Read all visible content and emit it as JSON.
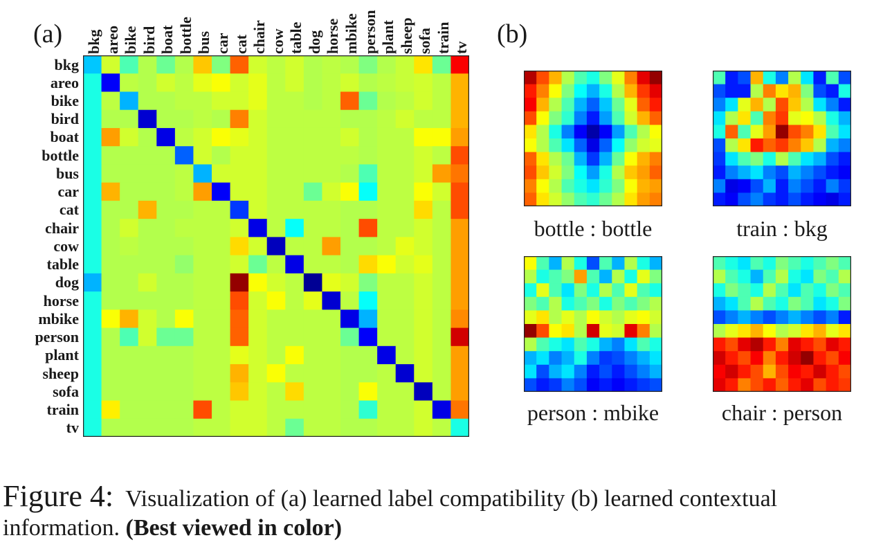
{
  "panel_a": {
    "letter": "(a)",
    "labels": [
      "bkg",
      "areo",
      "bike",
      "bird",
      "boat",
      "bottle",
      "bus",
      "car",
      "cat",
      "chair",
      "cow",
      "table",
      "dog",
      "horse",
      "mbike",
      "person",
      "plant",
      "sheep",
      "sofa",
      "train",
      "tv"
    ],
    "chart_data": {
      "type": "heatmap",
      "rows": [
        "bkg",
        "areo",
        "bike",
        "bird",
        "boat",
        "bottle",
        "bus",
        "car",
        "cat",
        "chair",
        "cow",
        "table",
        "dog",
        "horse",
        "mbike",
        "person",
        "plant",
        "sheep",
        "sofa",
        "train",
        "tv"
      ],
      "columns": [
        "bkg",
        "areo",
        "bike",
        "bird",
        "boat",
        "bottle",
        "bus",
        "car",
        "cat",
        "chair",
        "cow",
        "table",
        "dog",
        "horse",
        "mbike",
        "person",
        "plant",
        "sheep",
        "sofa",
        "train",
        "tv"
      ],
      "colormap": "jet",
      "values": [
        [
          0.32,
          0.58,
          0.45,
          0.55,
          0.48,
          0.55,
          0.68,
          0.5,
          0.78,
          0.58,
          0.56,
          0.58,
          0.55,
          0.56,
          0.55,
          0.5,
          0.55,
          0.57,
          0.65,
          0.48,
          0.88
        ],
        [
          0.4,
          0.12,
          0.56,
          0.55,
          0.58,
          0.56,
          0.6,
          0.62,
          0.58,
          0.6,
          0.56,
          0.58,
          0.55,
          0.56,
          0.58,
          0.55,
          0.56,
          0.57,
          0.58,
          0.56,
          0.7
        ],
        [
          0.4,
          0.56,
          0.3,
          0.55,
          0.55,
          0.56,
          0.56,
          0.58,
          0.58,
          0.6,
          0.56,
          0.56,
          0.55,
          0.56,
          0.78,
          0.48,
          0.55,
          0.56,
          0.58,
          0.56,
          0.7
        ],
        [
          0.4,
          0.55,
          0.55,
          0.08,
          0.55,
          0.55,
          0.56,
          0.55,
          0.75,
          0.58,
          0.56,
          0.56,
          0.56,
          0.56,
          0.55,
          0.55,
          0.56,
          0.58,
          0.56,
          0.56,
          0.7
        ],
        [
          0.4,
          0.72,
          0.58,
          0.55,
          0.1,
          0.56,
          0.58,
          0.62,
          0.6,
          0.58,
          0.56,
          0.56,
          0.56,
          0.56,
          0.58,
          0.55,
          0.56,
          0.56,
          0.62,
          0.62,
          0.72
        ],
        [
          0.4,
          0.55,
          0.55,
          0.55,
          0.55,
          0.22,
          0.58,
          0.55,
          0.58,
          0.58,
          0.56,
          0.56,
          0.56,
          0.56,
          0.56,
          0.55,
          0.56,
          0.56,
          0.58,
          0.56,
          0.8
        ],
        [
          0.4,
          0.55,
          0.55,
          0.55,
          0.55,
          0.56,
          0.3,
          0.58,
          0.58,
          0.58,
          0.56,
          0.56,
          0.56,
          0.56,
          0.55,
          0.45,
          0.56,
          0.56,
          0.58,
          0.72,
          0.76
        ],
        [
          0.4,
          0.7,
          0.55,
          0.55,
          0.55,
          0.56,
          0.72,
          0.12,
          0.58,
          0.58,
          0.56,
          0.56,
          0.48,
          0.58,
          0.62,
          0.38,
          0.56,
          0.56,
          0.62,
          0.58,
          0.8
        ],
        [
          0.4,
          0.55,
          0.55,
          0.7,
          0.55,
          0.55,
          0.56,
          0.56,
          0.18,
          0.58,
          0.56,
          0.56,
          0.56,
          0.56,
          0.55,
          0.55,
          0.56,
          0.56,
          0.66,
          0.56,
          0.8
        ],
        [
          0.4,
          0.55,
          0.58,
          0.55,
          0.55,
          0.56,
          0.56,
          0.56,
          0.58,
          0.1,
          0.56,
          0.38,
          0.56,
          0.56,
          0.55,
          0.8,
          0.56,
          0.56,
          0.58,
          0.56,
          0.72
        ],
        [
          0.4,
          0.55,
          0.56,
          0.55,
          0.55,
          0.55,
          0.56,
          0.56,
          0.66,
          0.58,
          0.06,
          0.56,
          0.56,
          0.72,
          0.55,
          0.55,
          0.56,
          0.6,
          0.58,
          0.56,
          0.72
        ],
        [
          0.4,
          0.55,
          0.55,
          0.55,
          0.55,
          0.52,
          0.56,
          0.56,
          0.58,
          0.48,
          0.56,
          0.1,
          0.56,
          0.56,
          0.55,
          0.66,
          0.62,
          0.58,
          0.6,
          0.56,
          0.72
        ],
        [
          0.3,
          0.55,
          0.55,
          0.58,
          0.55,
          0.55,
          0.56,
          0.56,
          0.98,
          0.62,
          0.58,
          0.56,
          0.02,
          0.6,
          0.58,
          0.5,
          0.56,
          0.56,
          0.58,
          0.56,
          0.72
        ],
        [
          0.4,
          0.55,
          0.55,
          0.55,
          0.55,
          0.55,
          0.56,
          0.56,
          0.8,
          0.58,
          0.62,
          0.56,
          0.6,
          0.08,
          0.56,
          0.38,
          0.56,
          0.56,
          0.58,
          0.56,
          0.72
        ],
        [
          0.4,
          0.62,
          0.7,
          0.58,
          0.55,
          0.62,
          0.56,
          0.56,
          0.78,
          0.58,
          0.56,
          0.56,
          0.56,
          0.56,
          0.1,
          0.3,
          0.56,
          0.56,
          0.58,
          0.56,
          0.74
        ],
        [
          0.4,
          0.55,
          0.45,
          0.58,
          0.48,
          0.48,
          0.56,
          0.56,
          0.78,
          0.58,
          0.56,
          0.56,
          0.56,
          0.56,
          0.48,
          0.12,
          0.56,
          0.56,
          0.58,
          0.56,
          0.92
        ],
        [
          0.4,
          0.55,
          0.55,
          0.55,
          0.55,
          0.55,
          0.56,
          0.56,
          0.6,
          0.58,
          0.56,
          0.62,
          0.56,
          0.56,
          0.55,
          0.55,
          0.1,
          0.56,
          0.58,
          0.56,
          0.72
        ],
        [
          0.4,
          0.55,
          0.55,
          0.55,
          0.55,
          0.55,
          0.56,
          0.56,
          0.7,
          0.58,
          0.62,
          0.56,
          0.56,
          0.56,
          0.55,
          0.55,
          0.56,
          0.08,
          0.58,
          0.56,
          0.72
        ],
        [
          0.4,
          0.55,
          0.55,
          0.55,
          0.55,
          0.55,
          0.56,
          0.56,
          0.68,
          0.58,
          0.56,
          0.66,
          0.56,
          0.56,
          0.55,
          0.62,
          0.56,
          0.56,
          0.06,
          0.56,
          0.72
        ],
        [
          0.4,
          0.64,
          0.55,
          0.55,
          0.55,
          0.55,
          0.8,
          0.56,
          0.58,
          0.58,
          0.56,
          0.56,
          0.56,
          0.56,
          0.55,
          0.42,
          0.56,
          0.56,
          0.58,
          0.1,
          0.76
        ],
        [
          0.4,
          0.55,
          0.55,
          0.55,
          0.55,
          0.55,
          0.56,
          0.56,
          0.58,
          0.58,
          0.56,
          0.48,
          0.56,
          0.56,
          0.55,
          0.55,
          0.56,
          0.56,
          0.58,
          0.56,
          0.4
        ]
      ]
    }
  },
  "panel_b": {
    "letter": "(b)",
    "chart_data": [
      {
        "type": "heatmap",
        "colormap": "jet",
        "title": "bottle : bottle",
        "values": [
          [
            0.95,
            0.8,
            0.7,
            0.55,
            0.45,
            0.4,
            0.5,
            0.6,
            0.75,
            0.9,
            0.98
          ],
          [
            0.85,
            0.75,
            0.62,
            0.5,
            0.38,
            0.3,
            0.4,
            0.55,
            0.7,
            0.82,
            0.9
          ],
          [
            0.88,
            0.7,
            0.55,
            0.45,
            0.3,
            0.22,
            0.32,
            0.48,
            0.6,
            0.78,
            0.85
          ],
          [
            0.8,
            0.62,
            0.5,
            0.42,
            0.25,
            0.15,
            0.28,
            0.45,
            0.58,
            0.7,
            0.78
          ],
          [
            0.65,
            0.55,
            0.4,
            0.25,
            0.12,
            0.04,
            0.12,
            0.28,
            0.45,
            0.55,
            0.62
          ],
          [
            0.62,
            0.55,
            0.45,
            0.35,
            0.22,
            0.1,
            0.22,
            0.38,
            0.52,
            0.58,
            0.6
          ],
          [
            0.78,
            0.65,
            0.55,
            0.48,
            0.3,
            0.18,
            0.3,
            0.48,
            0.62,
            0.7,
            0.75
          ],
          [
            0.8,
            0.68,
            0.58,
            0.5,
            0.38,
            0.28,
            0.4,
            0.55,
            0.68,
            0.72,
            0.78
          ],
          [
            0.75,
            0.62,
            0.55,
            0.45,
            0.4,
            0.35,
            0.42,
            0.5,
            0.62,
            0.7,
            0.72
          ],
          [
            0.78,
            0.65,
            0.58,
            0.52,
            0.45,
            0.42,
            0.48,
            0.55,
            0.65,
            0.72,
            0.75
          ]
        ]
      },
      {
        "type": "heatmap",
        "colormap": "jet",
        "title": "train : bkg",
        "values": [
          [
            0.45,
            0.15,
            0.2,
            0.7,
            0.4,
            0.25,
            0.55,
            0.35,
            0.15,
            0.45,
            0.2
          ],
          [
            0.2,
            0.15,
            0.15,
            0.55,
            0.75,
            0.65,
            0.7,
            0.5,
            0.2,
            0.15,
            0.4
          ],
          [
            0.25,
            0.35,
            0.6,
            0.7,
            0.55,
            0.8,
            0.68,
            0.55,
            0.35,
            0.25,
            0.15
          ],
          [
            0.35,
            0.55,
            0.65,
            0.45,
            0.75,
            0.82,
            0.6,
            0.62,
            0.55,
            0.4,
            0.3
          ],
          [
            0.4,
            0.78,
            0.45,
            0.6,
            0.72,
            0.98,
            0.8,
            0.75,
            0.65,
            0.45,
            0.35
          ],
          [
            0.2,
            0.55,
            0.65,
            0.85,
            0.78,
            0.82,
            0.75,
            0.68,
            0.55,
            0.3,
            0.25
          ],
          [
            0.18,
            0.35,
            0.45,
            0.5,
            0.4,
            0.55,
            0.45,
            0.35,
            0.3,
            0.2,
            0.15
          ],
          [
            0.15,
            0.25,
            0.3,
            0.35,
            0.25,
            0.2,
            0.3,
            0.25,
            0.2,
            0.15,
            0.12
          ],
          [
            0.25,
            0.1,
            0.12,
            0.2,
            0.3,
            0.15,
            0.25,
            0.2,
            0.15,
            0.25,
            0.18
          ],
          [
            0.15,
            0.12,
            0.2,
            0.25,
            0.18,
            0.15,
            0.2,
            0.15,
            0.12,
            0.1,
            0.15
          ]
        ]
      },
      {
        "type": "heatmap",
        "colormap": "jet",
        "title": "person : mbike",
        "values": [
          [
            0.62,
            0.45,
            0.3,
            0.55,
            0.4,
            0.2,
            0.45,
            0.3,
            0.55,
            0.4,
            0.3
          ],
          [
            0.55,
            0.4,
            0.45,
            0.5,
            0.72,
            0.45,
            0.3,
            0.55,
            0.4,
            0.6,
            0.5
          ],
          [
            0.4,
            0.6,
            0.45,
            0.35,
            0.5,
            0.4,
            0.55,
            0.45,
            0.6,
            0.45,
            0.4
          ],
          [
            0.5,
            0.45,
            0.55,
            0.4,
            0.45,
            0.5,
            0.4,
            0.5,
            0.45,
            0.5,
            0.55
          ],
          [
            0.6,
            0.65,
            0.55,
            0.6,
            0.55,
            0.62,
            0.58,
            0.55,
            0.6,
            0.62,
            0.58
          ],
          [
            0.98,
            0.8,
            0.62,
            0.65,
            0.55,
            0.92,
            0.6,
            0.58,
            0.9,
            0.75,
            0.55
          ],
          [
            0.55,
            0.45,
            0.4,
            0.35,
            0.45,
            0.4,
            0.3,
            0.25,
            0.35,
            0.45,
            0.4
          ],
          [
            0.3,
            0.35,
            0.25,
            0.3,
            0.4,
            0.25,
            0.18,
            0.2,
            0.25,
            0.3,
            0.35
          ],
          [
            0.35,
            0.2,
            0.3,
            0.35,
            0.25,
            0.15,
            0.2,
            0.15,
            0.2,
            0.25,
            0.3
          ],
          [
            0.2,
            0.15,
            0.18,
            0.25,
            0.2,
            0.12,
            0.15,
            0.12,
            0.15,
            0.18,
            0.2
          ]
        ]
      },
      {
        "type": "heatmap",
        "colormap": "jet",
        "title": "chair : person",
        "values": [
          [
            0.45,
            0.4,
            0.35,
            0.45,
            0.4,
            0.5,
            0.45,
            0.4,
            0.45,
            0.5,
            0.45
          ],
          [
            0.55,
            0.45,
            0.4,
            0.3,
            0.45,
            0.55,
            0.4,
            0.35,
            0.5,
            0.45,
            0.55
          ],
          [
            0.4,
            0.5,
            0.45,
            0.4,
            0.55,
            0.45,
            0.35,
            0.45,
            0.4,
            0.5,
            0.45
          ],
          [
            0.3,
            0.35,
            0.45,
            0.55,
            0.45,
            0.4,
            0.5,
            0.45,
            0.35,
            0.4,
            0.5
          ],
          [
            0.2,
            0.25,
            0.3,
            0.25,
            0.2,
            0.25,
            0.3,
            0.25,
            0.2,
            0.25,
            0.15
          ],
          [
            0.55,
            0.6,
            0.65,
            0.7,
            0.62,
            0.55,
            0.58,
            0.65,
            0.7,
            0.6,
            0.65
          ],
          [
            0.85,
            0.8,
            0.9,
            0.95,
            0.85,
            0.75,
            0.9,
            0.85,
            0.8,
            0.9,
            0.85
          ],
          [
            0.92,
            0.85,
            0.8,
            0.88,
            0.75,
            0.85,
            0.92,
            0.98,
            0.85,
            0.8,
            0.88
          ],
          [
            0.88,
            0.92,
            0.85,
            0.8,
            0.7,
            0.8,
            0.88,
            0.85,
            0.92,
            0.85,
            0.8
          ],
          [
            0.9,
            0.85,
            0.75,
            0.8,
            0.85,
            0.78,
            0.85,
            0.9,
            0.8,
            0.85,
            0.82
          ]
        ]
      }
    ]
  },
  "caption": {
    "figure_number": "Figure 4:",
    "text": "Visualization of (a) learned label compatibility (b) learned contextual information. ",
    "bold": "(Best viewed in color)"
  }
}
